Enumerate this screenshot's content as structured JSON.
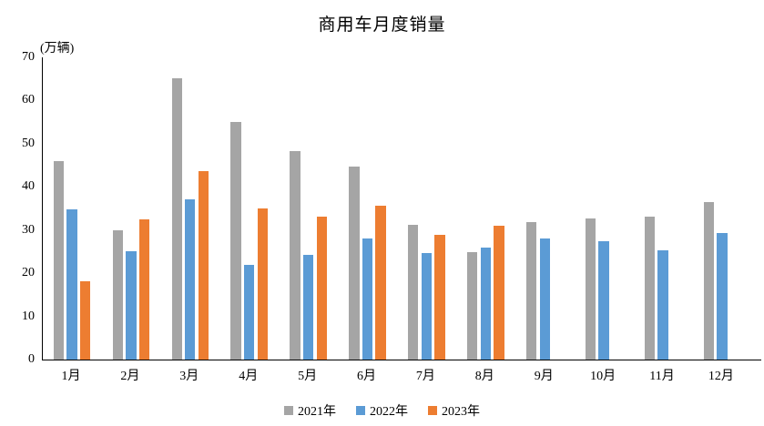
{
  "chart_data": {
    "type": "bar",
    "title": "商用车月度销量",
    "unit_label": "(万辆)",
    "xlabel": "",
    "ylabel": "万辆",
    "categories": [
      "1月",
      "2月",
      "3月",
      "4月",
      "5月",
      "6月",
      "7月",
      "8月",
      "9月",
      "10月",
      "11月",
      "12月"
    ],
    "series": [
      {
        "name": "2021年",
        "color": "#A5A5A5",
        "values": [
          45.9,
          29.9,
          65.2,
          55.1,
          48.3,
          44.7,
          31.3,
          24.8,
          31.8,
          32.7,
          33.1,
          36.5
        ]
      },
      {
        "name": "2022年",
        "color": "#5B9BD5",
        "values": [
          34.7,
          25.1,
          37.1,
          21.9,
          24.2,
          28.1,
          24.6,
          25.9,
          28.0,
          27.4,
          25.4,
          29.3
        ]
      },
      {
        "name": "2023年",
        "color": "#ED7D31",
        "values": [
          18.1,
          32.5,
          43.6,
          35.1,
          33.1,
          35.6,
          28.8,
          31.0,
          null,
          null,
          null,
          null
        ]
      }
    ],
    "ylim": [
      0,
      70
    ],
    "yticks": [
      0,
      10,
      20,
      30,
      40,
      50,
      60,
      70
    ],
    "grid": false,
    "legend_position": "bottom",
    "axis_color": "#000000",
    "background_color": "#ffffff"
  }
}
